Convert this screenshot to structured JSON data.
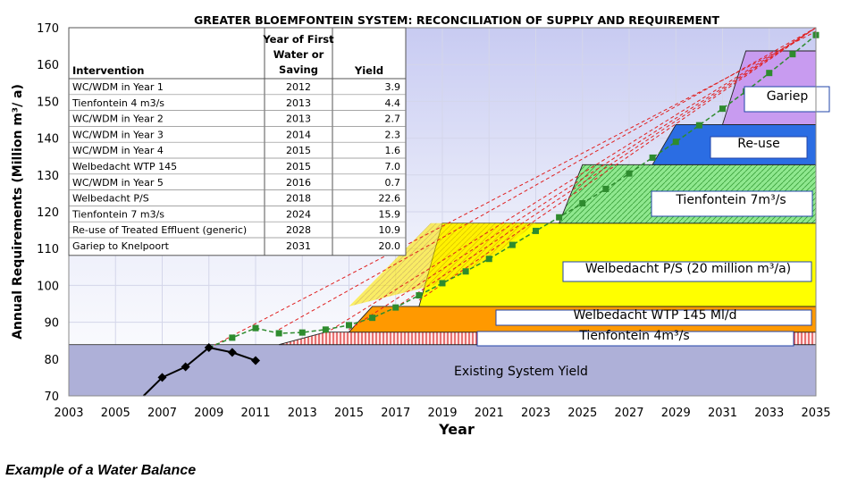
{
  "caption": "Example of a Water Balance",
  "chart_data": {
    "type": "area",
    "title": "GREATER BLOEMFONTEIN SYSTEM: RECONCILIATION OF SUPPLY AND REQUIREMENT",
    "xlabel": "Year",
    "ylabel": "Annual Requirements (Million m³/ a)",
    "xlim": [
      2003,
      2035
    ],
    "ylim": [
      70,
      170
    ],
    "x_ticks": [
      2003,
      2005,
      2007,
      2009,
      2011,
      2013,
      2015,
      2017,
      2019,
      2021,
      2023,
      2025,
      2027,
      2029,
      2031,
      2033,
      2035
    ],
    "y_ticks": [
      70,
      80,
      90,
      100,
      110,
      120,
      130,
      140,
      150,
      160,
      170
    ],
    "supply_layers": [
      {
        "label": "Existing System Yield",
        "color": "#aeb0d8",
        "points": [
          [
            2003,
            83.9
          ],
          [
            2035,
            83.9
          ]
        ],
        "base": 70
      },
      {
        "label": "Tienfontein 4m³/s",
        "color": "#d94040",
        "start": 2013,
        "top": 87.3
      },
      {
        "label": "Welbedacht WTP 145 Ml/d",
        "color": "#ff9900",
        "start": 2015,
        "top": 94.3
      },
      {
        "label": "Welbedacht P/S (20 million m³/a)",
        "color": "#ffff00",
        "start": 2018,
        "top": 116.9
      },
      {
        "label": "Tienfontein 7m³/s",
        "color": "#7ee07e",
        "start": 2024,
        "top": 132.8
      },
      {
        "label": "Re-use",
        "color": "#2b6de3",
        "start": 2028,
        "top": 143.7
      },
      {
        "label": "Gariep",
        "color": "#c89bf0",
        "start": 2031,
        "top": 163.7
      }
    ],
    "requirement_series": {
      "name": "",
      "color": "#2e8b2e",
      "x": [
        2010,
        2011,
        2012,
        2013,
        2014,
        2015,
        2016,
        2017,
        2018,
        2019,
        2020,
        2021,
        2022,
        2023,
        2024,
        2025,
        2026,
        2027,
        2028,
        2029,
        2030,
        2031,
        2032,
        2033,
        2034,
        2035
      ],
      "y": [
        85.8,
        88.4,
        87.0,
        87.2,
        88.0,
        89.2,
        91.2,
        94.0,
        97.3,
        100.6,
        103.8,
        107.2,
        111.0,
        114.8,
        118.5,
        122.3,
        126.2,
        130.4,
        134.7,
        139.0,
        143.5,
        148.0,
        152.7,
        157.7,
        162.8,
        168.0
      ]
    },
    "historical_series": {
      "name": "",
      "color": "#000000",
      "x": [
        2006.2,
        2007,
        2008,
        2009,
        2010,
        2011
      ],
      "y": [
        70,
        75,
        77.9,
        83.1,
        81.8,
        79.6
      ]
    },
    "scenario_lines": [
      {
        "x": [
          2009,
          2035
        ],
        "y": [
          83.0,
          169.0
        ]
      },
      {
        "x": [
          2012,
          2035
        ],
        "y": [
          88.0,
          170.0
        ]
      },
      {
        "x": [
          2014,
          2035
        ],
        "y": [
          87.0,
          170.0
        ]
      },
      {
        "x": [
          2015,
          2035
        ],
        "y": [
          88.0,
          170.0
        ]
      },
      {
        "x": [
          2017,
          2035
        ],
        "y": [
          94.0,
          170.0
        ]
      },
      {
        "x": [
          2018,
          2035
        ],
        "y": [
          96.0,
          170.0
        ]
      }
    ],
    "table": {
      "headers": [
        "Intervention",
        "Year of First Water or Saving",
        "Yield"
      ],
      "rows": [
        [
          "WC/WDM in Year 1",
          "2012",
          "3.9"
        ],
        [
          "Tienfontein 4 m3/s",
          "2013",
          "4.4"
        ],
        [
          "WC/WDM in Year 2",
          "2013",
          "2.7"
        ],
        [
          "WC/WDM in Year 3",
          "2014",
          "2.3"
        ],
        [
          "WC/WDM in Year 4",
          "2015",
          "1.6"
        ],
        [
          "Welbedacht WTP 145",
          "2015",
          "7.0"
        ],
        [
          "WC/WDM in Year 5",
          "2016",
          "0.7"
        ],
        [
          "Welbedacht P/S",
          "2018",
          "22.6"
        ],
        [
          "Tienfontein 7 m3/s",
          "2024",
          "15.9"
        ],
        [
          "Re-use of Treated Effluent (generic)",
          "2028",
          "10.9"
        ],
        [
          "Gariep to Knelpoort",
          "2031",
          "20.0"
        ]
      ]
    }
  }
}
